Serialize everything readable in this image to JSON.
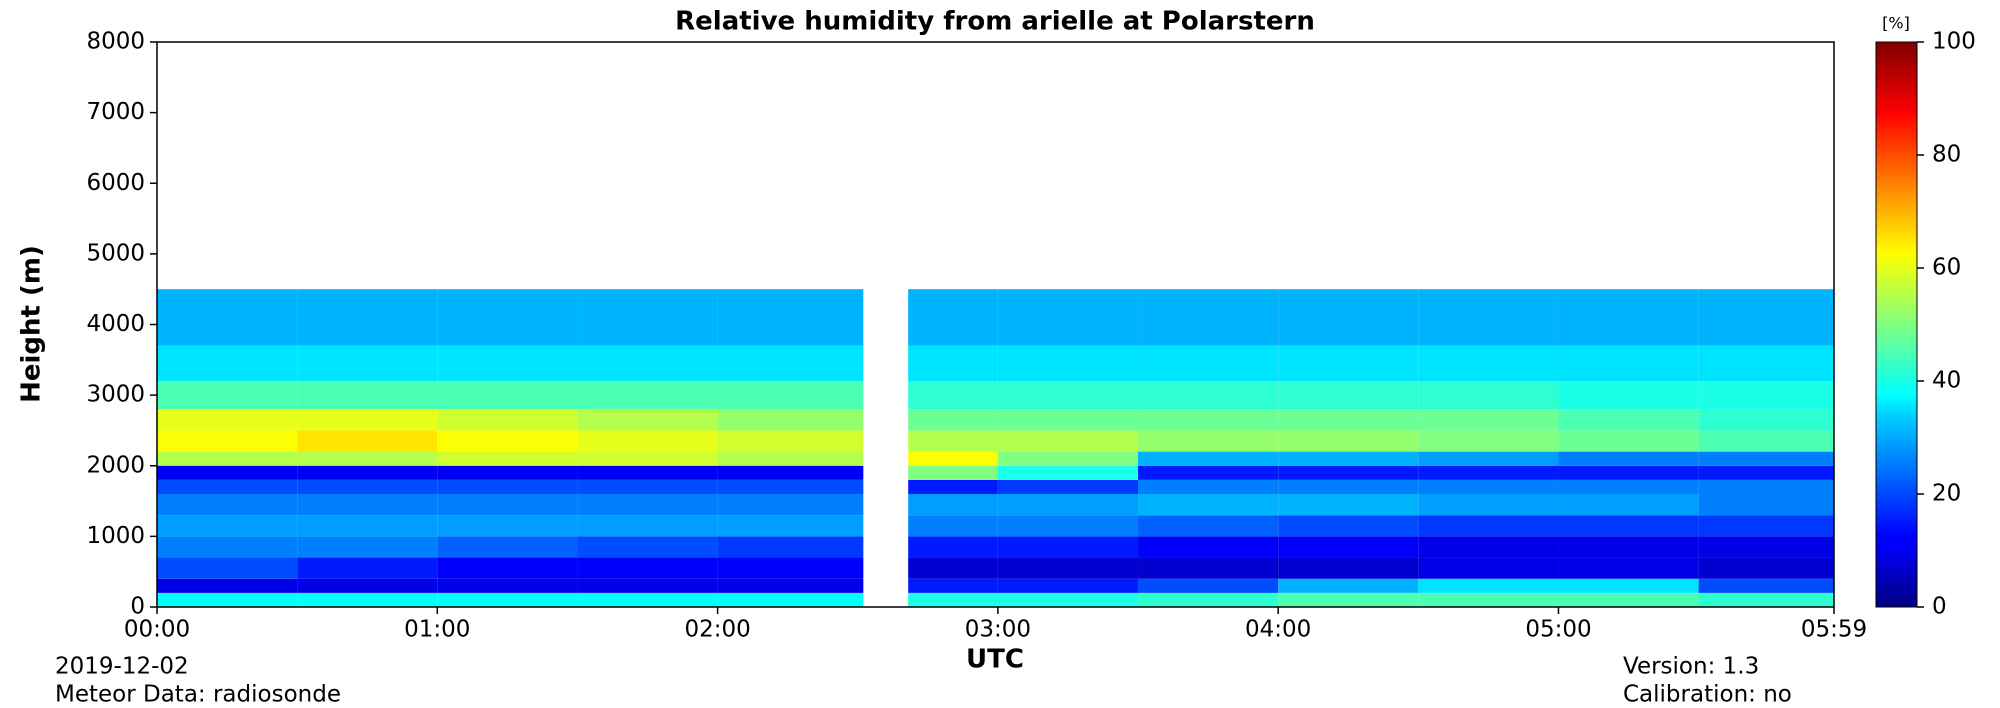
{
  "chart_data": {
    "type": "heatmap",
    "title": "Relative humidity from arielle at Polarstern",
    "y_label": "Height (m)",
    "x_label": "UTC",
    "colorbar_label": "[%]",
    "date": "2019-12-02",
    "meteor_data": "Meteor Data: radiosonde",
    "version": "Version: 1.3",
    "calibration": "Calibration: no",
    "colormap": "jet",
    "xlim": [
      0,
      5.983
    ],
    "xticks": [
      {
        "value": 0,
        "label": "00:00"
      },
      {
        "value": 1,
        "label": "01:00"
      },
      {
        "value": 2,
        "label": "02:00"
      },
      {
        "value": 3,
        "label": "03:00"
      },
      {
        "value": 4,
        "label": "04:00"
      },
      {
        "value": 5,
        "label": "05:00"
      },
      {
        "value": 5.983,
        "label": "05:59"
      }
    ],
    "ylim": [
      0,
      8000
    ],
    "yticks": [
      0,
      1000,
      2000,
      3000,
      4000,
      5000,
      6000,
      7000,
      8000
    ],
    "clim": [
      0,
      100
    ],
    "cticks": [
      0,
      20,
      40,
      60,
      80,
      100
    ],
    "x_edges": [
      0,
      0.5,
      1,
      1.5,
      2,
      2.52,
      2.68,
      3,
      3.5,
      4,
      4.5,
      5,
      5.5,
      5.983
    ],
    "y_edges": [
      0,
      200,
      400,
      700,
      1000,
      1300,
      1600,
      1800,
      2000,
      2200,
      2500,
      2800,
      3200,
      3700,
      4500
    ],
    "z": [
      [
        38,
        38,
        38,
        38,
        38,
        null,
        40,
        40,
        42,
        45,
        45,
        45,
        42
      ],
      [
        10,
        10,
        10,
        10,
        10,
        null,
        15,
        15,
        20,
        30,
        35,
        35,
        20
      ],
      [
        20,
        15,
        12,
        12,
        12,
        null,
        8,
        8,
        8,
        8,
        10,
        10,
        8
      ],
      [
        25,
        25,
        22,
        20,
        18,
        null,
        15,
        15,
        12,
        12,
        10,
        10,
        10
      ],
      [
        28,
        28,
        28,
        28,
        28,
        null,
        25,
        25,
        22,
        20,
        18,
        18,
        18
      ],
      [
        25,
        25,
        25,
        25,
        25,
        null,
        28,
        28,
        30,
        30,
        28,
        28,
        25
      ],
      [
        20,
        20,
        20,
        20,
        20,
        null,
        15,
        18,
        25,
        25,
        25,
        25,
        25
      ],
      [
        12,
        12,
        12,
        12,
        12,
        null,
        50,
        40,
        15,
        15,
        15,
        15,
        15
      ],
      [
        55,
        55,
        58,
        58,
        55,
        null,
        62,
        50,
        30,
        30,
        28,
        25,
        25
      ],
      [
        62,
        65,
        62,
        60,
        58,
        null,
        55,
        55,
        52,
        52,
        50,
        48,
        45
      ],
      [
        60,
        60,
        58,
        55,
        52,
        null,
        48,
        48,
        48,
        48,
        48,
        45,
        42
      ],
      [
        45,
        45,
        45,
        45,
        45,
        null,
        42,
        42,
        42,
        42,
        42,
        40,
        40
      ],
      [
        35,
        35,
        35,
        35,
        35,
        null,
        35,
        35,
        35,
        35,
        35,
        35,
        35
      ],
      [
        30,
        30,
        30,
        30,
        30,
        null,
        30,
        30,
        30,
        30,
        30,
        30,
        30
      ]
    ]
  }
}
